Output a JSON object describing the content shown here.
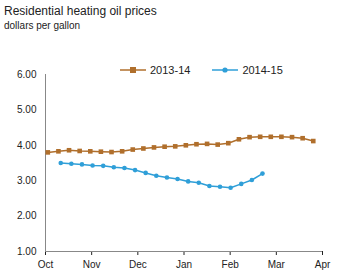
{
  "chart_data": {
    "type": "line",
    "title": "Residential heating oil prices",
    "subtitle": "dollars per gallon",
    "xlim": [
      0,
      6
    ],
    "xticks": [
      {
        "value": 0,
        "label": "Oct"
      },
      {
        "value": 1,
        "label": "Nov"
      },
      {
        "value": 2,
        "label": "Dec"
      },
      {
        "value": 3,
        "label": "Jan"
      },
      {
        "value": 4,
        "label": "Feb"
      },
      {
        "value": 5,
        "label": "Mar"
      },
      {
        "value": 6,
        "label": "Apr"
      }
    ],
    "ylim": [
      1,
      6
    ],
    "yticks": [
      {
        "value": 1,
        "label": "1.00"
      },
      {
        "value": 2,
        "label": "2.00"
      },
      {
        "value": 3,
        "label": "3.00"
      },
      {
        "value": 4,
        "label": "4.00"
      },
      {
        "value": 5,
        "label": "5.00"
      },
      {
        "value": 6,
        "label": "6.00"
      }
    ],
    "grid": false,
    "legend": "top",
    "series": [
      {
        "name": "2013-14",
        "color": "#b06f2c",
        "marker": "square",
        "x": [
          0.05,
          0.28,
          0.51,
          0.74,
          0.97,
          1.2,
          1.43,
          1.66,
          1.89,
          2.12,
          2.35,
          2.58,
          2.81,
          3.04,
          3.27,
          3.5,
          3.73,
          3.96,
          4.19,
          4.42,
          4.65,
          4.88,
          5.11,
          5.34,
          5.57,
          5.8
        ],
        "values": [
          3.8,
          3.83,
          3.86,
          3.84,
          3.83,
          3.82,
          3.81,
          3.83,
          3.88,
          3.91,
          3.94,
          3.96,
          3.97,
          4.0,
          4.03,
          4.04,
          4.02,
          4.06,
          4.17,
          4.23,
          4.24,
          4.24,
          4.24,
          4.23,
          4.2,
          4.12
        ]
      },
      {
        "name": "2014-15",
        "color": "#2f9fd8",
        "marker": "circle",
        "x": [
          0.33,
          0.56,
          0.79,
          1.02,
          1.25,
          1.48,
          1.71,
          1.94,
          2.17,
          2.4,
          2.63,
          2.86,
          3.09,
          3.32,
          3.55,
          3.78,
          4.01,
          4.24,
          4.47,
          4.7
        ],
        "values": [
          3.5,
          3.48,
          3.46,
          3.43,
          3.42,
          3.38,
          3.36,
          3.3,
          3.22,
          3.14,
          3.09,
          3.05,
          2.98,
          2.94,
          2.85,
          2.83,
          2.8,
          2.91,
          3.02,
          3.2
        ]
      }
    ]
  }
}
